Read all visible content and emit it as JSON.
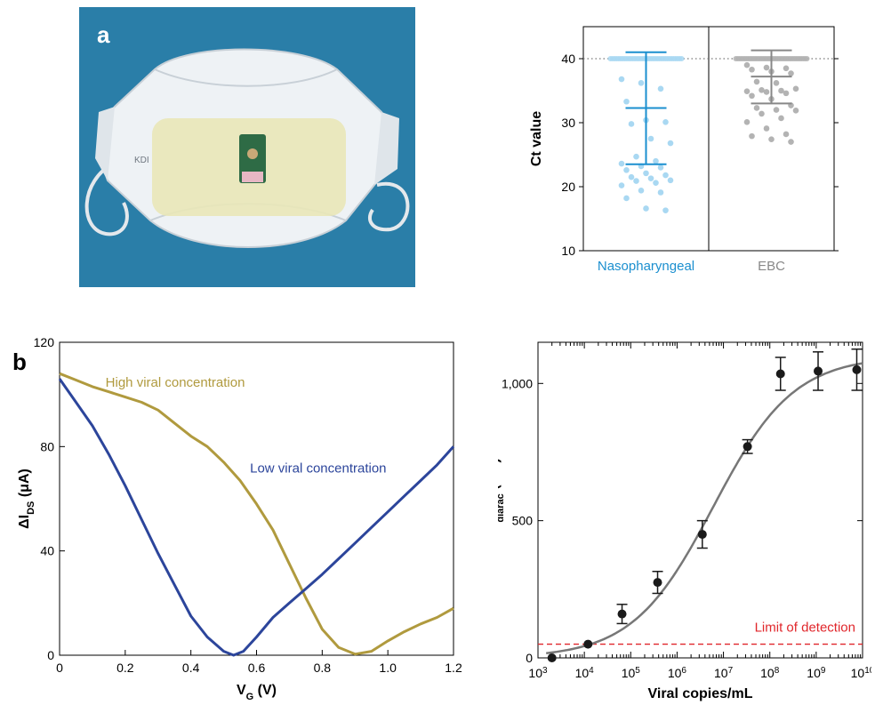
{
  "panels": {
    "a_label": "a",
    "b_label": "b"
  },
  "photo": {
    "background_color": "#2a7ea8",
    "mask_color": "#e9eef2",
    "sensor_color": "#2e6b45",
    "mask_imprint": "KDI"
  },
  "chart_data": [
    {
      "type": "scatter",
      "ylabel": "Ct value",
      "ylim": [
        10,
        45
      ],
      "yticks": [
        10,
        20,
        30,
        40
      ],
      "categories": [
        "Nasopharyngeal",
        "EBC"
      ],
      "category_colors": [
        "#1b8fcf",
        "#888888"
      ],
      "reference_line": 40,
      "series": [
        {
          "name": "Nasopharyngeal",
          "color": "#a9d8f2",
          "summary": {
            "low": 23.5,
            "mid": 32.3,
            "high": 41
          },
          "values": [
            36.8,
            36.2,
            35.3,
            33.3,
            30.4,
            30.1,
            29.8,
            27.5,
            26.8,
            24.7,
            24.0,
            23.6,
            23.2,
            23.0,
            22.6,
            22.1,
            21.8,
            21.5,
            21.3,
            21.0,
            20.9,
            20.6,
            20.2,
            19.4,
            19.1,
            18.2,
            16.6,
            16.3
          ],
          "at_limit_count": 36
        },
        {
          "name": "EBC",
          "color": "#b3b3b3",
          "summary": {
            "low": 33.0,
            "mid": 37.2,
            "high": 41.3
          },
          "values": [
            39.0,
            38.6,
            38.5,
            38.3,
            38.0,
            37.7,
            36.4,
            36.2,
            35.3,
            35.1,
            35.0,
            34.9,
            34.8,
            34.6,
            34.2,
            33.7,
            32.7,
            32.3,
            32.0,
            31.9,
            31.4,
            30.7,
            30.1,
            29.1,
            28.2,
            27.9,
            27.4,
            27.0
          ],
          "at_limit_count": 40
        }
      ]
    },
    {
      "type": "line",
      "xlabel": "V_G (V)",
      "ylabel": "ΔI_DS (μA)",
      "xlim": [
        0,
        1.2
      ],
      "ylim": [
        0,
        120
      ],
      "xticks": [
        0,
        0.2,
        0.4,
        0.6,
        0.8,
        1.0,
        1.2
      ],
      "xtick_labels": [
        "0",
        "0.2",
        "0.4",
        "0.6",
        "0.8",
        "1.0",
        "1.2"
      ],
      "yticks": [
        0,
        40,
        80,
        120
      ],
      "series": [
        {
          "name": "High viral concentration",
          "color": "#b09a3e",
          "x": [
            0,
            0.05,
            0.1,
            0.15,
            0.2,
            0.25,
            0.3,
            0.35,
            0.4,
            0.45,
            0.5,
            0.55,
            0.6,
            0.65,
            0.7,
            0.75,
            0.8,
            0.85,
            0.9,
            0.95,
            1.0,
            1.05,
            1.1,
            1.15,
            1.2
          ],
          "y": [
            108,
            105.5,
            103,
            101,
            99,
            97,
            94,
            89,
            84,
            80,
            74,
            67,
            58,
            48,
            35,
            22,
            10,
            3,
            0.4,
            1.5,
            5.5,
            9,
            12,
            14.5,
            18
          ]
        },
        {
          "name": "Low viral concentration",
          "color": "#2c459b",
          "x": [
            0,
            0.05,
            0.1,
            0.15,
            0.2,
            0.25,
            0.3,
            0.35,
            0.4,
            0.45,
            0.5,
            0.53,
            0.56,
            0.6,
            0.65,
            0.7,
            0.75,
            0.8,
            0.85,
            0.9,
            0.95,
            1.0,
            1.05,
            1.1,
            1.15,
            1.2
          ],
          "y": [
            106,
            97,
            88,
            77,
            65,
            52,
            39,
            27,
            15,
            7,
            1.5,
            0,
            1.5,
            7,
            14.5,
            20,
            25.5,
            31,
            37,
            43,
            49,
            55,
            61,
            67,
            73,
            80
          ]
        }
      ]
    },
    {
      "type": "scatter",
      "xlabel": "Viral copies/mL",
      "ylabel": "ΔV_diarac (mV)",
      "xscale": "log",
      "xlim": [
        1000,
        10000000000
      ],
      "xtick_exponents": [
        3,
        4,
        5,
        6,
        7,
        8,
        9,
        10
      ],
      "ylim": [
        0,
        1150
      ],
      "yticks": [
        0,
        500,
        1000
      ],
      "ytick_labels": [
        "0",
        "500",
        "1,000"
      ],
      "point_color": "#1a1a1a",
      "fit_color": "#777777",
      "points": [
        {
          "x": 2000,
          "y": 0,
          "err": 0
        },
        {
          "x": 12000,
          "y": 50,
          "err": 0
        },
        {
          "x": 65000,
          "y": 160,
          "err": 35
        },
        {
          "x": 380000,
          "y": 275,
          "err": 40
        },
        {
          "x": 3500000,
          "y": 450,
          "err": 50
        },
        {
          "x": 33000000,
          "y": 770,
          "err": 25
        },
        {
          "x": 170000000,
          "y": 1035,
          "err": 60
        },
        {
          "x": 1100000000,
          "y": 1045,
          "err": 70
        },
        {
          "x": 7500000000,
          "y": 1050,
          "err": 75
        }
      ],
      "fit": {
        "bottom": 0,
        "top": 1100,
        "ec50": 6000000,
        "hill": 0.5
      },
      "limit_of_detection": {
        "label": "Limit of detection",
        "value": 50,
        "color": "#e0262b"
      }
    }
  ]
}
